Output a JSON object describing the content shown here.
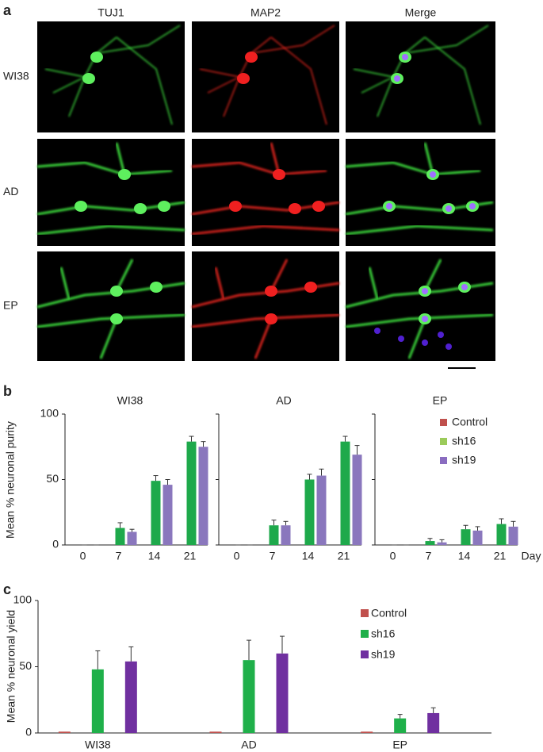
{
  "panel_a": {
    "label": "a",
    "columns": [
      "TUJ1",
      "MAP2",
      "Merge"
    ],
    "rows": [
      "WI38",
      "AD",
      "EP"
    ]
  },
  "chart_data": [
    {
      "type": "bar",
      "label": "b",
      "y_label": "Mean % neuronal purity",
      "x_label": "Day",
      "categories": [
        "0",
        "7",
        "14",
        "21"
      ],
      "series_names": [
        "Control",
        "sh16",
        "sh19"
      ],
      "colors": [
        "#c0504d",
        "#1ea94b",
        "#8a77bd"
      ],
      "legend_colors": [
        "#c0504d",
        "#9bcb5a",
        "#8a6cc0"
      ],
      "ylim": [
        0,
        100
      ],
      "yticks": [
        0,
        50,
        100
      ],
      "panels": [
        {
          "title": "WI38",
          "series": [
            {
              "values": [
                0,
                0,
                0,
                0
              ]
            },
            {
              "values": [
                0,
                13,
                49,
                79
              ],
              "errors": [
                0,
                4,
                4,
                4
              ]
            },
            {
              "values": [
                0,
                10,
                46,
                75
              ],
              "errors": [
                0,
                2,
                4,
                4
              ]
            }
          ]
        },
        {
          "title": "AD",
          "series": [
            {
              "values": [
                0,
                0,
                0,
                0
              ]
            },
            {
              "values": [
                0,
                15,
                50,
                79
              ],
              "errors": [
                0,
                4,
                4,
                4
              ]
            },
            {
              "values": [
                0,
                15,
                53,
                69
              ],
              "errors": [
                0,
                3,
                5,
                7
              ]
            }
          ]
        },
        {
          "title": "EP",
          "series": [
            {
              "values": [
                0,
                0,
                0,
                0
              ]
            },
            {
              "values": [
                0,
                3,
                12,
                16
              ],
              "errors": [
                0,
                2,
                3,
                4
              ]
            },
            {
              "values": [
                0,
                2,
                11,
                14
              ],
              "errors": [
                0,
                2,
                3,
                4
              ]
            }
          ]
        }
      ]
    },
    {
      "type": "bar",
      "label": "c",
      "y_label": "Mean % neuronal yield",
      "categories": [
        "WI38",
        "AD",
        "EP"
      ],
      "ylim": [
        0,
        100
      ],
      "yticks": [
        0,
        50,
        100
      ],
      "series": [
        {
          "name": "Control",
          "color": "#c0504d",
          "values": [
            1,
            1,
            1
          ]
        },
        {
          "name": "sh16",
          "color": "#1fb04a",
          "values": [
            48,
            55,
            11
          ],
          "errors": [
            14,
            15,
            3
          ]
        },
        {
          "name": "sh19",
          "color": "#7030a0",
          "values": [
            54,
            60,
            15
          ],
          "errors": [
            11,
            13,
            4
          ]
        }
      ]
    }
  ]
}
